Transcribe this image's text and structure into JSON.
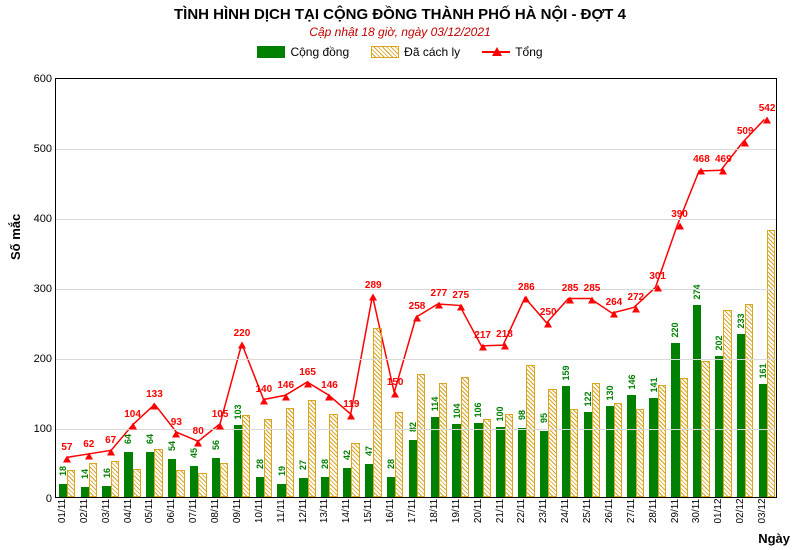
{
  "title": "TÌNH HÌNH DỊCH TẠI CỘNG ĐỒNG THÀNH PHỐ HÀ NỘI - ĐỢT 4",
  "subtitle": "Cập nhật 18 giờ, ngày 03/12/2021",
  "y_axis_label": "Số mắc",
  "x_axis_label": "Ngày",
  "legend": {
    "community": "Cộng đồng",
    "isolated": "Đã cách ly",
    "total": "Tổng"
  },
  "colors": {
    "community": "#008000",
    "isolated": "#daa520",
    "total": "#ff0000",
    "grid": "#d9d9d9",
    "title": "#000000",
    "subtitle": "#c00000",
    "background": "#ffffff"
  },
  "y": {
    "min": 0,
    "max": 600,
    "step": 100
  },
  "fonts": {
    "title_size": 15,
    "subtitle_size": 12,
    "axis_label_size": 13,
    "tick_size": 11,
    "value_label_size": 10
  },
  "type": "bar-line-combo",
  "days": [
    {
      "d": "01/11",
      "c": 18,
      "i": 39,
      "t": 57
    },
    {
      "d": "02/11",
      "c": 14,
      "i": 48,
      "t": 62
    },
    {
      "d": "03/11",
      "c": 16,
      "i": 51,
      "t": 67
    },
    {
      "d": "04/11",
      "c": 64,
      "i": 40,
      "t": 104
    },
    {
      "d": "05/11",
      "c": 64,
      "i": 69,
      "t": 133
    },
    {
      "d": "06/11",
      "c": 54,
      "i": 39,
      "t": 93
    },
    {
      "d": "07/11",
      "c": 45,
      "i": 35,
      "t": 80
    },
    {
      "d": "08/11",
      "c": 56,
      "i": 49,
      "t": 105
    },
    {
      "d": "09/11",
      "c": 103,
      "i": 117,
      "t": 220
    },
    {
      "d": "10/11",
      "c": 28,
      "i": 112,
      "t": 140
    },
    {
      "d": "11/11",
      "c": 19,
      "i": 127,
      "t": 146
    },
    {
      "d": "12/11",
      "c": 27,
      "i": 138,
      "t": 165
    },
    {
      "d": "13/11",
      "c": 28,
      "i": 118,
      "t": 146
    },
    {
      "d": "14/11",
      "c": 42,
      "i": 77,
      "t": 119
    },
    {
      "d": "15/11",
      "c": 47,
      "i": 242,
      "t": 289
    },
    {
      "d": "16/11",
      "c": 28,
      "i": 122,
      "t": 150
    },
    {
      "d": "17/11",
      "c": 82,
      "i": 176,
      "t": 258
    },
    {
      "d": "18/11",
      "c": 114,
      "i": 163,
      "t": 277
    },
    {
      "d": "19/11",
      "c": 104,
      "i": 171,
      "t": 275
    },
    {
      "d": "20/11",
      "c": 106,
      "i": 111,
      "t": 217
    },
    {
      "d": "21/11",
      "c": 100,
      "i": 118,
      "t": 218
    },
    {
      "d": "22/11",
      "c": 98,
      "i": 188,
      "t": 286
    },
    {
      "d": "23/11",
      "c": 95,
      "i": 155,
      "t": 250
    },
    {
      "d": "24/11",
      "c": 159,
      "i": 126,
      "t": 285
    },
    {
      "d": "25/11",
      "c": 122,
      "i": 163,
      "t": 285
    },
    {
      "d": "26/11",
      "c": 130,
      "i": 134,
      "t": 264
    },
    {
      "d": "27/11",
      "c": 146,
      "i": 126,
      "t": 272
    },
    {
      "d": "28/11",
      "c": 141,
      "i": 160,
      "t": 301
    },
    {
      "d": "29/11",
      "c": 220,
      "i": 170,
      "t": 390
    },
    {
      "d": "30/11",
      "c": 274,
      "i": 194,
      "t": 468
    },
    {
      "d": "01/12",
      "c": 202,
      "i": 267,
      "t": 469
    },
    {
      "d": "02/12",
      "c": 233,
      "i": 276,
      "t": 509
    },
    {
      "d": "03/12",
      "c": 161,
      "i": 381,
      "t": 542
    }
  ]
}
